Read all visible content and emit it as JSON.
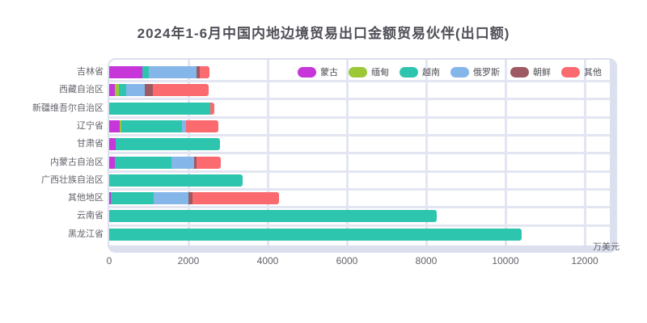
{
  "chart_data": {
    "type": "bar",
    "orientation": "horizontal-stacked",
    "title": "2024年1-6月中国内地边境贸易出口金额贸易伙伴(出口额)",
    "unit": "万美元",
    "legend_position": "top-right",
    "grid": "on",
    "xlim": [
      0,
      12800
    ],
    "x_ticks": [
      "0",
      "2000",
      "4000",
      "6000",
      "8000",
      "10000",
      "12000"
    ],
    "x_tick_values": [
      0,
      2000,
      4000,
      6000,
      8000,
      10000,
      12000
    ],
    "categories": [
      "吉林省",
      "西藏自治区",
      "新疆维吾尔自治区",
      "辽宁省",
      "甘肃省",
      "内蒙古自治区",
      "广西壮族自治区",
      "其他地区",
      "云南省",
      "黑龙江省"
    ],
    "series": [
      {
        "name": "蒙古",
        "color": "#c636d8",
        "values": [
          840,
          140,
          0,
          270,
          160,
          140,
          0,
          40,
          0,
          0
        ]
      },
      {
        "name": "缅甸",
        "color": "#9cc838",
        "values": [
          0,
          100,
          0,
          40,
          0,
          0,
          0,
          0,
          0,
          0
        ]
      },
      {
        "name": "越南",
        "color": "#2ec5ae",
        "values": [
          160,
          190,
          2560,
          1530,
          2640,
          1430,
          3370,
          1080,
          8260,
          10400
        ]
      },
      {
        "name": "俄罗斯",
        "color": "#85b6e9",
        "values": [
          1210,
          470,
          0,
          100,
          0,
          570,
          0,
          880,
          0,
          0
        ]
      },
      {
        "name": "朝鲜",
        "color": "#9d5a63",
        "values": [
          80,
          200,
          0,
          0,
          0,
          60,
          0,
          100,
          0,
          0
        ]
      },
      {
        "name": "其他",
        "color": "#fa6a6e",
        "values": [
          250,
          1420,
          90,
          810,
          0,
          620,
          0,
          2180,
          0,
          0
        ]
      }
    ],
    "totals": [
      2540,
      2520,
      2650,
      2750,
      2800,
      2820,
      3370,
      4280,
      8260,
      10400
    ],
    "colors": {
      "grid": "#e3e6f2",
      "frame": "#dce0ee",
      "title_text": "#4f4f58",
      "axis_text": "#62626b"
    }
  }
}
